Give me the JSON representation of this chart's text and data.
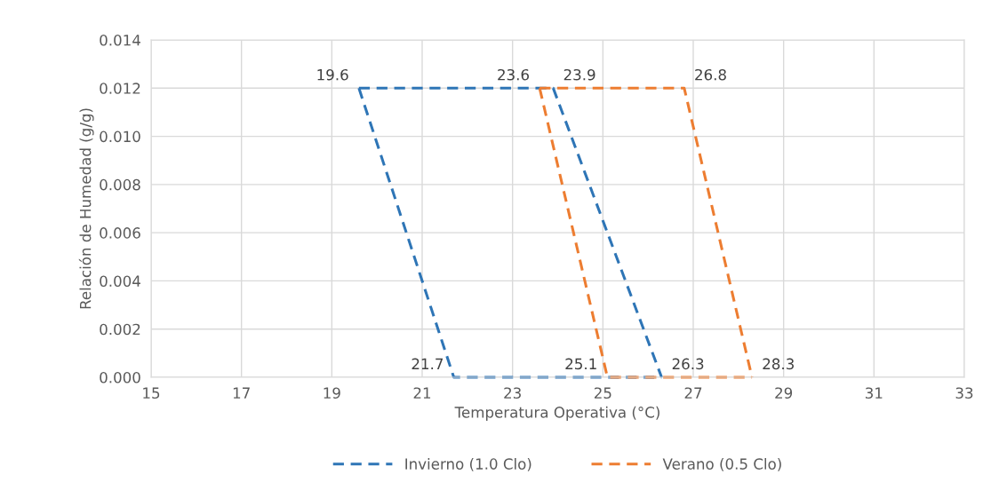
{
  "chart_data": {
    "type": "line",
    "xlabel": "Temperatura Operativa (°C)",
    "ylabel": "Relación de Humedad (g/g)",
    "xlim": [
      15,
      33
    ],
    "xticks": [
      15,
      17,
      19,
      21,
      23,
      25,
      27,
      29,
      31,
      33
    ],
    "ylim": [
      0,
      0.014
    ],
    "yticks": [
      {
        "value": 0,
        "label": "0.000"
      },
      {
        "value": 0.002,
        "label": "0.002"
      },
      {
        "value": 0.004,
        "label": "0.004"
      },
      {
        "value": 0.006,
        "label": "0.006"
      },
      {
        "value": 0.008,
        "label": "0.008"
      },
      {
        "value": 0.01,
        "label": "0.010"
      },
      {
        "value": 0.012,
        "label": "0.012"
      },
      {
        "value": 0.014,
        "label": "0.014"
      }
    ],
    "grid": true,
    "legend": "bottom",
    "line_style": "dashed",
    "marker": "none",
    "series": [
      {
        "name": "Invierno (1.0 Clo)",
        "color": "#2e75b6",
        "x": [
          19.6,
          23.9,
          26.3
        ],
        "values": [
          0.012,
          0.012,
          0
        ]
      },
      {
        "color": "#2e75b6",
        "x": [
          19.6,
          21.7,
          26.3
        ],
        "values": [
          0.012,
          0,
          0
        ]
      },
      {
        "name": "Verano (0.5 Clo)",
        "color": "#ed7d31",
        "x": [
          23.6,
          26.8,
          28.3
        ],
        "values": [
          0.012,
          0.012,
          0
        ]
      },
      {
        "color": "#ed7d31",
        "x": [
          23.6,
          25.1,
          28.3
        ],
        "values": [
          0.012,
          0,
          0
        ]
      }
    ],
    "annotations": [
      {
        "text": "19.6",
        "x": 19.6,
        "y": 0.012
      },
      {
        "text": "23.6",
        "x": 23.6,
        "y": 0.012
      },
      {
        "text": "23.9",
        "x": 23.9,
        "y": 0.012
      },
      {
        "text": "26.8",
        "x": 26.8,
        "y": 0.012
      },
      {
        "text": "21.7",
        "x": 21.7,
        "y": 0
      },
      {
        "text": "25.1",
        "x": 25.1,
        "y": 0
      },
      {
        "text": "26.3",
        "x": 26.3,
        "y": 0
      },
      {
        "text": "28.3",
        "x": 28.3,
        "y": 0
      }
    ]
  }
}
